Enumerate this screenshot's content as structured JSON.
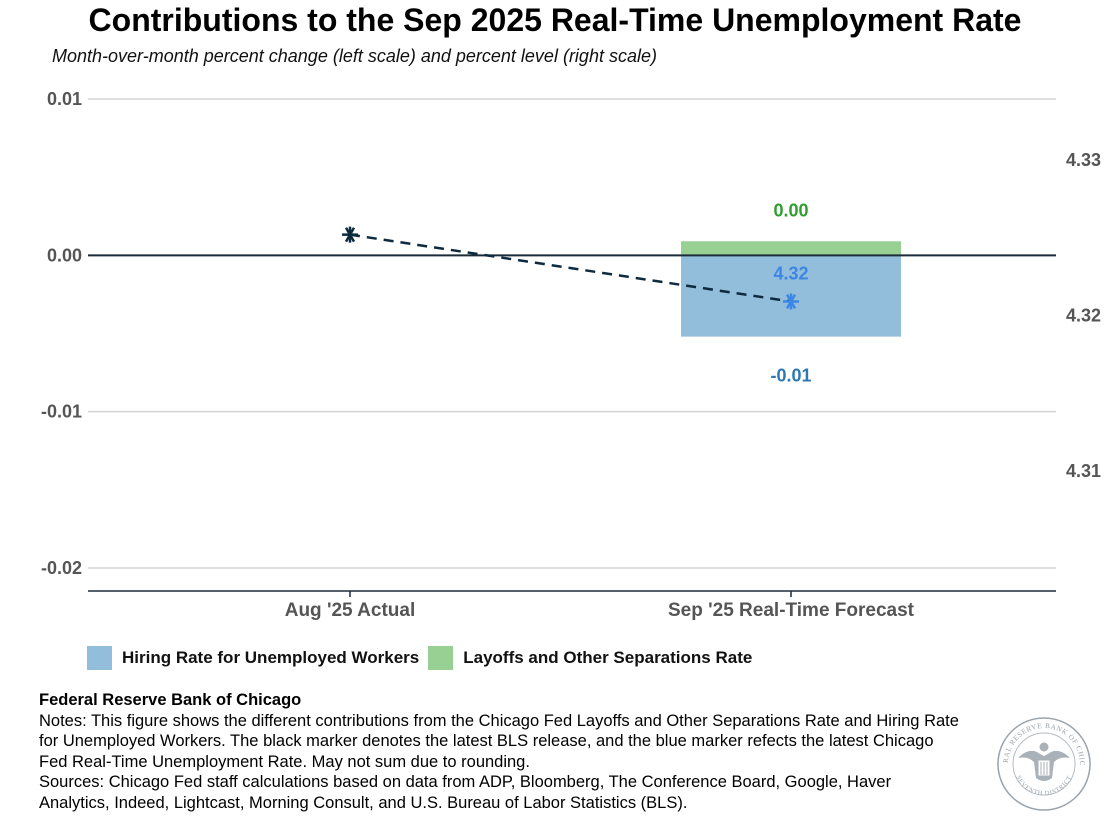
{
  "title": "Contributions to the Sep 2025 Real-Time Unemployment Rate",
  "subtitle": "Month-over-month percent change (left scale) and percent level (right scale)",
  "colors": {
    "hiring": "#92bddb",
    "layoffs": "#98cf93",
    "hiring_label": "#2e77b5",
    "layoffs_label": "#2f9e2f",
    "rate_marker": "#3d86e6",
    "actual_marker": "#0d2a3e",
    "axis": "#1b2b3a",
    "grid": "#d4d4d4",
    "tick_text": "#555555"
  },
  "legend": [
    {
      "label": "Hiring Rate for Unemployed Workers",
      "color": "#92bddb"
    },
    {
      "label": "Layoffs and Other Separations Rate",
      "color": "#98cf93"
    }
  ],
  "chart_data": {
    "type": "bar",
    "stacked": true,
    "categories": [
      "Aug '25 Actual",
      "Sep '25 Real-Time Forecast"
    ],
    "left_axis": {
      "ylim": [
        -0.0215,
        0.0102
      ],
      "ticks": [
        0.01,
        0.0,
        -0.01,
        -0.02
      ],
      "tick_labels": [
        "0.01",
        "0.00",
        "-0.01",
        "-0.02"
      ]
    },
    "right_axis": {
      "ylim": [
        4.3003,
        4.3368
      ],
      "ticks": [
        4.33,
        4.32,
        4.31
      ],
      "tick_labels": [
        "4.33",
        "4.32",
        "4.31"
      ]
    },
    "series": [
      {
        "name": "Hiring Rate for Unemployed Workers",
        "values": [
          null,
          -0.0052
        ],
        "data_labels": [
          "",
          "-0.01"
        ]
      },
      {
        "name": "Layoffs and Other Separations Rate",
        "values": [
          null,
          0.0009
        ],
        "data_labels": [
          "",
          "0.00"
        ]
      }
    ],
    "rate_line": {
      "values": [
        4.3252,
        4.3209
      ],
      "data_labels": [
        "",
        "4.32"
      ]
    },
    "grid": true,
    "legend_position": "bottom-left"
  },
  "footer": {
    "org": "Federal Reserve Bank of Chicago",
    "notes": "Notes: This figure shows the different contributions from the Chicago Fed Layoffs and Other Separations Rate and Hiring Rate for Unemployed Workers. The black marker denotes the latest BLS release, and the blue marker refects the latest Chicago Fed Real-Time Unemployment Rate. May not sum due to rounding.",
    "sources": "Sources: Chicago Fed staff calculations based on data from ADP, Bloomberg, The Conference Board, Google, Haver Analytics, Indeed, Lightcast, Morning Consult, and U.S. Bureau of Labor Statistics (BLS)."
  },
  "seal": {
    "text_top": "FEDERAL RESERVE BANK OF CHICAGO",
    "text_bottom": "SEVENTH DISTRICT"
  }
}
